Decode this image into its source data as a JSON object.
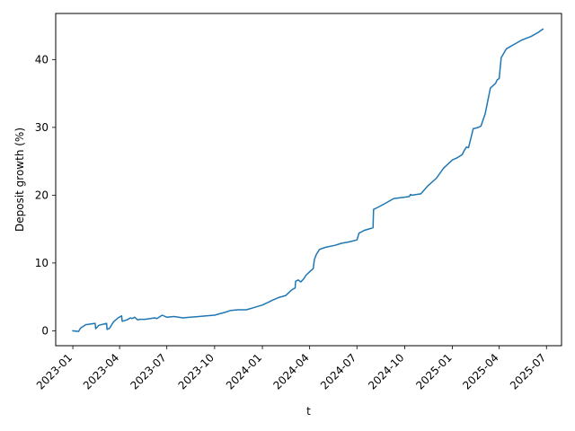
{
  "chart_data": {
    "type": "line",
    "title": "",
    "xlabel": "t",
    "ylabel": "Deposit growth (%)",
    "xlim": [
      "2022-11-29",
      "2025-07-30"
    ],
    "ylim": [
      -2.2,
      46.8
    ],
    "x_ticks": [
      "2023-01-01",
      "2023-04-01",
      "2023-07-01",
      "2023-10-01",
      "2024-01-01",
      "2024-04-01",
      "2024-07-01",
      "2024-10-01",
      "2025-01-01",
      "2025-04-01",
      "2025-07-01"
    ],
    "x_tick_labels": [
      "2023-01",
      "2023-04",
      "2023-07",
      "2023-10",
      "2024-01",
      "2024-04",
      "2024-07",
      "2024-10",
      "2025-01",
      "2025-04",
      "2025-07"
    ],
    "y_ticks": [
      0,
      10,
      20,
      30,
      40
    ],
    "y_tick_labels": [
      "0",
      "10",
      "20",
      "30",
      "40"
    ],
    "grid": false,
    "line_color": "#1f77b4",
    "series": [
      {
        "x": [
          "2023-01-01",
          "2023-01-12",
          "2023-01-16",
          "2023-01-26",
          "2023-02-13",
          "2023-02-14",
          "2023-02-20",
          "2023-03-07",
          "2023-03-08",
          "2023-03-13",
          "2023-03-20",
          "2023-03-29",
          "2023-04-05",
          "2023-04-06",
          "2023-04-15",
          "2023-04-22",
          "2023-04-25",
          "2023-04-30",
          "2023-05-06",
          "2023-05-10",
          "2023-05-20",
          "2023-06-08",
          "2023-06-12",
          "2023-06-20",
          "2023-06-22",
          "2023-07-01",
          "2023-07-15",
          "2023-08-01",
          "2023-08-15",
          "2023-09-01",
          "2023-09-15",
          "2023-10-01",
          "2023-10-10",
          "2023-10-20",
          "2023-11-01",
          "2023-11-15",
          "2023-12-01",
          "2023-12-15",
          "2024-01-01",
          "2024-01-15",
          "2024-01-20",
          "2024-02-01",
          "2024-02-15",
          "2024-02-26",
          "2024-03-01",
          "2024-03-04",
          "2024-03-05",
          "2024-03-10",
          "2024-03-15",
          "2024-03-20",
          "2024-03-25",
          "2024-04-01",
          "2024-04-08",
          "2024-04-10",
          "2024-04-14",
          "2024-04-20",
          "2024-05-01",
          "2024-05-20",
          "2024-06-01",
          "2024-06-15",
          "2024-07-01",
          "2024-07-05",
          "2024-07-15",
          "2024-08-01",
          "2024-08-02",
          "2024-08-10",
          "2024-08-25",
          "2024-09-10",
          "2024-10-01",
          "2024-10-10",
          "2024-10-12",
          "2024-10-15",
          "2024-11-01",
          "2024-11-15",
          "2024-12-01",
          "2024-12-15",
          "2025-01-01",
          "2025-01-10",
          "2025-01-20",
          "2025-01-23",
          "2025-01-28",
          "2025-02-01",
          "2025-02-10",
          "2025-02-20",
          "2025-02-25",
          "2025-03-05",
          "2025-03-15",
          "2025-03-25",
          "2025-03-28",
          "2025-04-01",
          "2025-04-05",
          "2025-04-15",
          "2025-05-01",
          "2025-05-15",
          "2025-06-01",
          "2025-06-15",
          "2025-06-24"
        ],
        "y": [
          0.0,
          -0.1,
          0.4,
          0.9,
          1.1,
          0.3,
          0.8,
          1.1,
          0.2,
          0.4,
          1.3,
          1.9,
          2.2,
          1.4,
          1.6,
          1.9,
          1.8,
          2.0,
          1.6,
          1.7,
          1.7,
          1.9,
          1.8,
          2.2,
          2.3,
          2.0,
          2.1,
          1.9,
          2.0,
          2.1,
          2.2,
          2.3,
          2.5,
          2.7,
          3.0,
          3.1,
          3.1,
          3.4,
          3.8,
          4.3,
          4.5,
          4.9,
          5.2,
          6.0,
          6.2,
          6.3,
          7.3,
          7.5,
          7.2,
          7.6,
          8.2,
          8.7,
          9.2,
          10.5,
          11.3,
          12.0,
          12.3,
          12.6,
          12.9,
          13.1,
          13.4,
          14.4,
          14.8,
          15.2,
          17.9,
          18.2,
          18.8,
          19.5,
          19.7,
          19.8,
          20.1,
          20.0,
          20.2,
          21.4,
          22.5,
          24.0,
          25.2,
          25.5,
          26.0,
          26.5,
          27.1,
          27.0,
          29.8,
          30.0,
          30.2,
          32.0,
          35.8,
          36.5,
          37.0,
          37.2,
          40.3,
          41.6,
          42.3,
          42.9,
          43.4,
          44.0,
          44.5
        ]
      }
    ]
  }
}
